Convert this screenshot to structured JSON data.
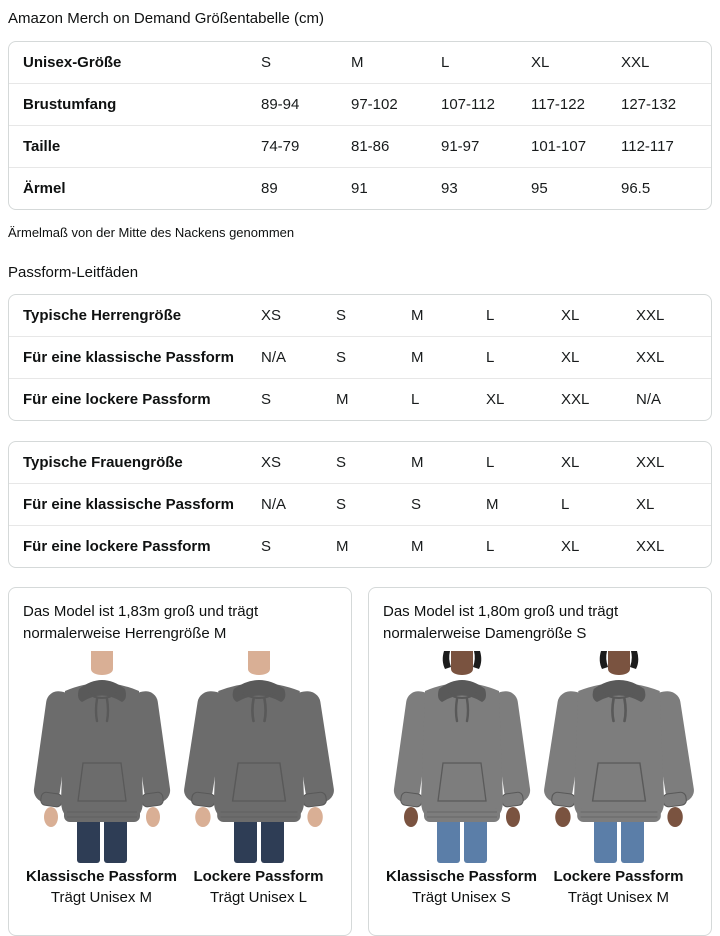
{
  "page": {
    "title": "Amazon Merch on Demand Größentabelle (cm)",
    "note": "Ärmelmaß von der Mitte des Nackens genommen",
    "fit_section_title": "Passform-Leitfäden"
  },
  "size_table": {
    "header": {
      "label": "Unisex-Größe",
      "values": [
        "S",
        "M",
        "L",
        "XL",
        "XXL"
      ]
    },
    "rows": [
      {
        "label": "Brustumfang",
        "values": [
          "89-94",
          "97-102",
          "107-112",
          "117-122",
          "127-132"
        ]
      },
      {
        "label": "Taille",
        "values": [
          "74-79",
          "81-86",
          "91-97",
          "101-107",
          "112-117"
        ]
      },
      {
        "label": "Ärmel",
        "values": [
          "89",
          "91",
          "93",
          "95",
          "96.5"
        ]
      }
    ]
  },
  "fit_tables": [
    {
      "name": "mens-fit-table",
      "rows": [
        {
          "label": "Typische Herrengröße",
          "values": [
            "XS",
            "S",
            "M",
            "L",
            "XL",
            "XXL"
          ]
        },
        {
          "label": "Für eine klassische Passform",
          "values": [
            "N/A",
            "S",
            "M",
            "L",
            "XL",
            "XXL"
          ]
        },
        {
          "label": "Für eine lockere Passform",
          "values": [
            "S",
            "M",
            "L",
            "XL",
            "XXL",
            "N/A"
          ]
        }
      ]
    },
    {
      "name": "womens-fit-table",
      "rows": [
        {
          "label": "Typische Frauengröße",
          "values": [
            "XS",
            "S",
            "M",
            "L",
            "XL",
            "XXL"
          ]
        },
        {
          "label": "Für eine klassische Passform",
          "values": [
            "N/A",
            "S",
            "S",
            "M",
            "L",
            "XL"
          ]
        },
        {
          "label": "Für eine lockere Passform",
          "values": [
            "S",
            "M",
            "M",
            "L",
            "XL",
            "XXL"
          ]
        }
      ]
    }
  ],
  "model_cards": [
    {
      "description": "Das Model ist 1,83m groß und trägt normalerweise Herrengröße M",
      "model": "male",
      "figures": [
        {
          "fit": "classic",
          "fit_label": "Klassische Passform",
          "size_label": "Trägt Unisex M"
        },
        {
          "fit": "loose",
          "fit_label": "Lockere Passform",
          "size_label": "Trägt Unisex L"
        }
      ]
    },
    {
      "description": "Das Model ist 1,80m groß und trägt normalerweise Damengröße S",
      "model": "female",
      "figures": [
        {
          "fit": "classic",
          "fit_label": "Klassische Passform",
          "size_label": "Trägt Unisex S"
        },
        {
          "fit": "loose",
          "fit_label": "Lockere Passform",
          "size_label": "Trägt Unisex M"
        }
      ]
    }
  ],
  "colors": {
    "text": "#0f1111",
    "table_border": "#d5d9d9",
    "row_divider": "#e7e7e7",
    "male_skin": "#d9af95",
    "female_skin": "#7a5340",
    "male_hoodie": "#6c6c6c",
    "female_hoodie": "#7d7d7d",
    "hoodie_shadow": "#595959",
    "male_jeans": "#2e3d55",
    "female_jeans": "#5b7ea8",
    "hair": "#1c1c1c"
  }
}
